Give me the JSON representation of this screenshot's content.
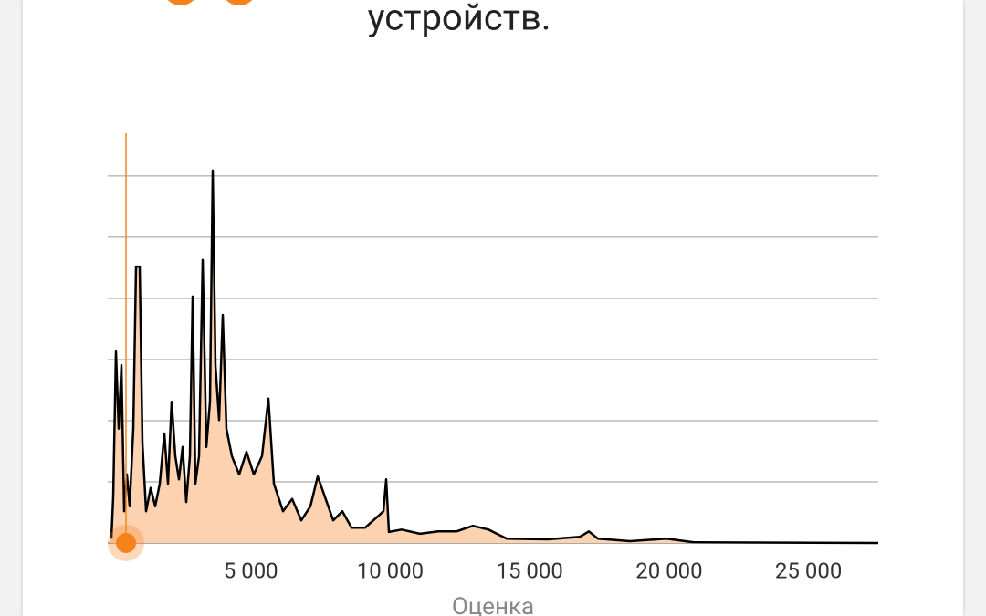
{
  "chart_data": {
    "type": "area",
    "title": "устройств.",
    "x_label": "Оценка",
    "x": [
      0,
      65,
      164,
      262,
      360,
      458,
      557,
      655,
      786,
      884,
      1015,
      1113,
      1244,
      1408,
      1572,
      1735,
      1899,
      2030,
      2161,
      2292,
      2423,
      2554,
      2685,
      2816,
      2914,
      3013,
      3143,
      3274,
      3405,
      3536,
      3634,
      3732,
      3863,
      3994,
      4125,
      4321,
      4583,
      4845,
      5107,
      5402,
      5631,
      5827,
      6155,
      6482,
      6810,
      7137,
      7399,
      7661,
      7955,
      8283,
      8610,
      9101,
      9592,
      9756,
      9854,
      9952,
      10411,
      11065,
      11720,
      12375,
      12964,
      13521,
      14175,
      15649,
      16795,
      17122,
      17449,
      18595,
      19905,
      20887,
      27500
    ],
    "values": [
      0.07,
      0.75,
      3.13,
      1.87,
      2.91,
      0.52,
      1.12,
      0.6,
      1.87,
      4.52,
      4.52,
      1.64,
      0.52,
      0.9,
      0.6,
      0.97,
      1.79,
      0.97,
      2.31,
      1.42,
      1.04,
      1.57,
      0.67,
      1.42,
      4.03,
      0.97,
      1.42,
      4.63,
      1.57,
      2.31,
      6.09,
      2.91,
      2.01,
      3.73,
      1.87,
      1.42,
      1.12,
      1.49,
      1.12,
      1.42,
      2.36,
      0.97,
      0.52,
      0.72,
      0.37,
      0.6,
      1.09,
      0.75,
      0.37,
      0.52,
      0.25,
      0.25,
      0.45,
      0.52,
      1.04,
      0.18,
      0.22,
      0.15,
      0.19,
      0.19,
      0.28,
      0.22,
      0.07,
      0.06,
      0.1,
      0.19,
      0.07,
      0.03,
      0.07,
      0.01,
      0
    ],
    "line_color": "#000000",
    "fill_color": "#fdd2b0",
    "highlight_x": 524,
    "highlight_color": "#f7821b",
    "xlim": [
      0,
      27500
    ],
    "xticks": [
      {
        "value": 5000,
        "label": "5 000"
      },
      {
        "value": 10000,
        "label": "10 000"
      },
      {
        "value": 15000,
        "label": "15 000"
      },
      {
        "value": 20000,
        "label": "20 000"
      },
      {
        "value": 25000,
        "label": "25 000"
      }
    ],
    "ylim": [
      0,
      6.7
    ],
    "ygrid": [
      0,
      1,
      2,
      3,
      4,
      5,
      6
    ]
  }
}
